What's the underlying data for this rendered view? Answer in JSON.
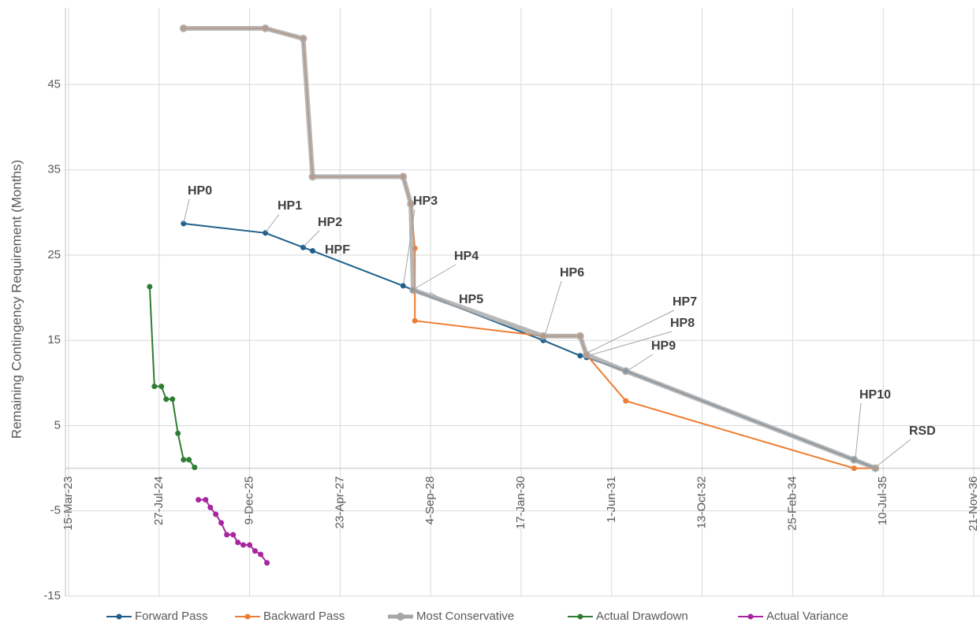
{
  "chart_data": {
    "type": "line",
    "y_label": "Remaining Contingency Requirement (Months)",
    "xlim": [
      "2023-03-15",
      "2036-11-21"
    ],
    "xticks": [
      {
        "value": "2023-03-15",
        "label": "15-Mar-23"
      },
      {
        "value": "2024-07-27",
        "label": "27-Jul-24"
      },
      {
        "value": "2025-12-09",
        "label": "9-Dec-25"
      },
      {
        "value": "2027-04-23",
        "label": "23-Apr-27"
      },
      {
        "value": "2028-09-04",
        "label": "4-Sep-28"
      },
      {
        "value": "2030-01-17",
        "label": "17-Jan-30"
      },
      {
        "value": "2031-06-01",
        "label": "1-Jun-31"
      },
      {
        "value": "2032-10-13",
        "label": "13-Oct-32"
      },
      {
        "value": "2034-02-25",
        "label": "25-Feb-34"
      },
      {
        "value": "2035-07-10",
        "label": "10-Jul-35"
      },
      {
        "value": "2036-11-21",
        "label": "21-Nov-36"
      }
    ],
    "ylim": [
      -15,
      54
    ],
    "yticks": [
      -15,
      -5,
      5,
      15,
      25,
      35,
      45
    ],
    "grid": true,
    "legend": "bottom",
    "series": [
      {
        "name": "Forward Pass",
        "color": "#1f5f8b",
        "width": 2,
        "x": [
          "2024-12-09",
          "2026-03-06",
          "2026-10-01",
          "2026-11-22",
          "2028-04-05",
          "2028-05-31",
          "2030-05-19",
          "2030-12-09",
          "2031-01-13",
          "2031-08-18",
          "2035-01-30",
          "2035-05-28"
        ],
        "values": [
          28.7,
          27.6,
          25.9,
          25.5,
          21.4,
          20.9,
          15.0,
          13.2,
          13.0,
          11.4,
          1.0,
          0
        ]
      },
      {
        "name": "Backward Pass",
        "color": "#ed7d31",
        "width": 2,
        "x": [
          "2024-12-09",
          "2026-03-06",
          "2026-10-01",
          "2026-11-22",
          "2028-04-05",
          "2028-05-18",
          "2028-06-09",
          "2028-06-09",
          "2030-05-19",
          "2030-12-09",
          "2031-01-13",
          "2031-08-18",
          "2035-01-30",
          "2035-05-28"
        ],
        "values": [
          51.6,
          51.6,
          50.4,
          34.2,
          34.2,
          31.0,
          25.8,
          17.3,
          15.5,
          15.5,
          13.3,
          7.9,
          0,
          0
        ]
      },
      {
        "name": "Most Conservative",
        "color": "#a6a6a6",
        "width": 6,
        "x": [
          "2024-12-09",
          "2026-03-06",
          "2026-10-01",
          "2026-11-22",
          "2028-04-05",
          "2028-05-18",
          "2028-05-31",
          "2030-05-19",
          "2030-12-09",
          "2031-01-13",
          "2031-08-18",
          "2035-01-30",
          "2035-05-28"
        ],
        "values": [
          51.6,
          51.6,
          50.4,
          34.2,
          34.2,
          31.0,
          20.9,
          15.5,
          15.5,
          13.3,
          11.4,
          1.0,
          0
        ]
      },
      {
        "name": "Actual Drawdown",
        "color": "#2e7d32",
        "width": 2,
        "x": [
          "2024-06-05",
          "2024-07-01",
          "2024-08-09",
          "2024-09-04",
          "2024-10-09",
          "2024-11-08",
          "2024-12-09",
          "2025-01-08",
          "2025-02-08"
        ],
        "values": [
          21.3,
          9.6,
          9.6,
          8.1,
          8.1,
          4.1,
          1.0,
          1.0,
          0.1
        ]
      },
      {
        "name": "Actual Variance",
        "color": "#a8259f",
        "width": 2,
        "x": [
          "2025-03-01",
          "2025-04-10",
          "2025-05-06",
          "2025-06-05",
          "2025-07-05",
          "2025-08-05",
          "2025-09-09",
          "2025-10-05",
          "2025-11-04",
          "2025-12-09",
          "2026-01-08",
          "2026-02-08",
          "2026-03-15"
        ],
        "values": [
          -3.7,
          -3.7,
          -4.6,
          -5.4,
          -6.4,
          -7.8,
          -7.8,
          -8.7,
          -9.0,
          -9.0,
          -9.7,
          -10.1,
          -11.1
        ]
      }
    ],
    "annotations": [
      "HP0",
      "HP1",
      "HP2",
      "HPF",
      "HP3",
      "HP4",
      "HP5",
      "HP6",
      "HP7",
      "HP8",
      "HP9",
      "HP10",
      "RSD"
    ]
  }
}
